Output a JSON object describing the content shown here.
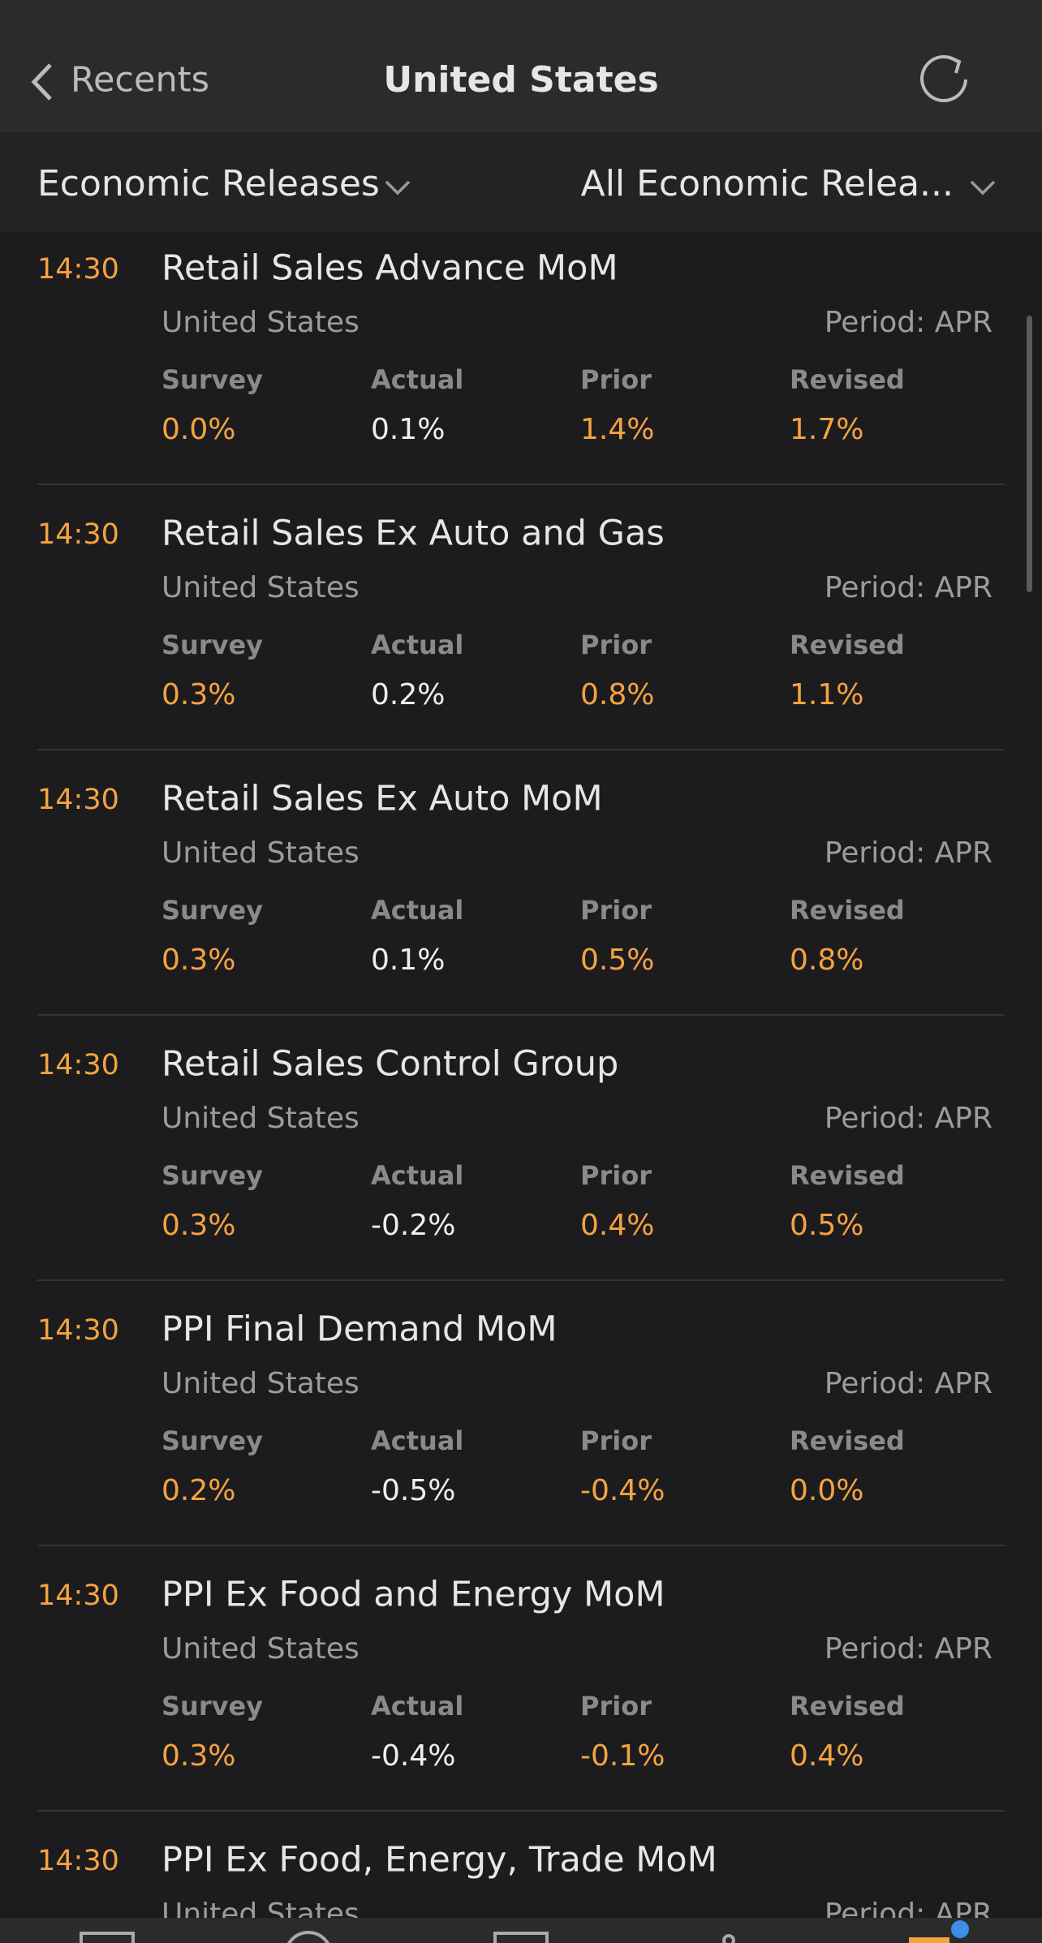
{
  "header": {
    "back": "Recents",
    "title": "United States"
  },
  "filters": {
    "left": "Economic Releases",
    "right": "All Economic Relea..."
  },
  "columns": [
    "Survey",
    "Actual",
    "Prior",
    "Revised"
  ],
  "items": [
    {
      "time": "14:30",
      "name": "Retail Sales Advance MoM",
      "country": "United States",
      "period": "Period: APR",
      "values": [
        "0.0%",
        "0.1%",
        "1.4%",
        "1.7%"
      ]
    },
    {
      "time": "14:30",
      "name": "Retail Sales Ex Auto and Gas",
      "country": "United States",
      "period": "Period: APR",
      "values": [
        "0.3%",
        "0.2%",
        "0.8%",
        "1.1%"
      ]
    },
    {
      "time": "14:30",
      "name": "Retail Sales Ex Auto MoM",
      "country": "United States",
      "period": "Period: APR",
      "values": [
        "0.3%",
        "0.1%",
        "0.5%",
        "0.8%"
      ]
    },
    {
      "time": "14:30",
      "name": "Retail Sales Control Group",
      "country": "United States",
      "period": "Period: APR",
      "values": [
        "0.3%",
        "-0.2%",
        "0.4%",
        "0.5%"
      ]
    },
    {
      "time": "14:30",
      "name": "PPI Final Demand MoM",
      "country": "United States",
      "period": "Period: APR",
      "values": [
        "0.2%",
        "-0.5%",
        "-0.4%",
        "0.0%"
      ]
    },
    {
      "time": "14:30",
      "name": "PPI Ex Food and Energy MoM",
      "country": "United States",
      "period": "Period: APR",
      "values": [
        "0.3%",
        "-0.4%",
        "-0.1%",
        "0.4%"
      ]
    },
    {
      "time": "14:30",
      "name": "PPI Ex Food, Energy, Trade MoM",
      "country": "United States",
      "period": "Period: APR"
    }
  ]
}
